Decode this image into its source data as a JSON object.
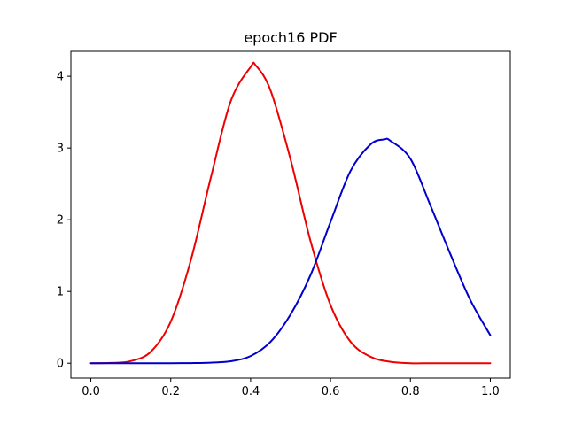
{
  "chart_data": {
    "type": "line",
    "title": "epoch16 PDF",
    "xlabel": "",
    "ylabel": "",
    "xlim": [
      -0.05,
      1.05
    ],
    "ylim": [
      -0.207,
      4.347
    ],
    "grid": false,
    "x_ticks": [
      0.0,
      0.2,
      0.4,
      0.6,
      0.8,
      1.0
    ],
    "x_tick_labels": [
      "0.0",
      "0.2",
      "0.4",
      "0.6",
      "0.8",
      "1.0"
    ],
    "y_ticks": [
      0,
      1,
      2,
      3,
      4
    ],
    "y_tick_labels": [
      "0",
      "1",
      "2",
      "3",
      "4"
    ],
    "series": [
      {
        "color": "#ee0000",
        "x": [
          0.0,
          0.05,
          0.1,
          0.15,
          0.2,
          0.25,
          0.3,
          0.35,
          0.4,
          0.413,
          0.45,
          0.5,
          0.55,
          0.6,
          0.65,
          0.7,
          0.75,
          0.8,
          0.85,
          0.9,
          0.95,
          1.0
        ],
        "values": [
          0.0,
          0.004,
          0.03,
          0.16,
          0.58,
          1.43,
          2.58,
          3.65,
          4.13,
          4.15,
          3.8,
          2.84,
          1.7,
          0.81,
          0.3,
          0.09,
          0.02,
          0.0,
          0.0,
          0.0,
          0.0,
          0.0
        ]
      },
      {
        "color": "#0000cc",
        "x": [
          0.0,
          0.05,
          0.1,
          0.15,
          0.2,
          0.25,
          0.3,
          0.35,
          0.4,
          0.45,
          0.5,
          0.55,
          0.6,
          0.65,
          0.7,
          0.735,
          0.75,
          0.8,
          0.85,
          0.9,
          0.95,
          1.0
        ],
        "values": [
          0.0,
          0.0,
          0.0,
          0.0,
          0.0,
          0.002,
          0.008,
          0.028,
          0.1,
          0.3,
          0.68,
          1.23,
          1.97,
          2.68,
          3.05,
          3.12,
          3.1,
          2.85,
          2.2,
          1.52,
          0.88,
          0.39
        ]
      }
    ]
  }
}
